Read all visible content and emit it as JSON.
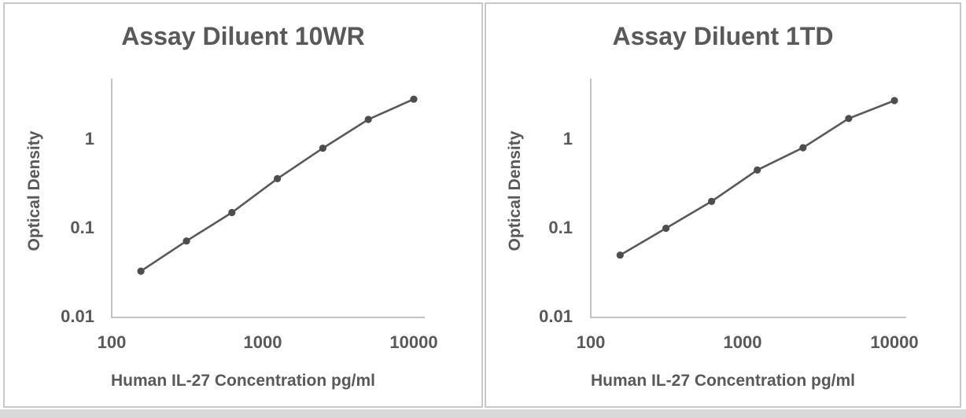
{
  "page": {
    "background_color": "#ffffff",
    "panel_border_color": "#c9c9c9",
    "bottom_strip_color": "#d9d9d9",
    "text_color": "#595959",
    "axis_line_color": "#c3c3c3",
    "series_line_color": "#595959",
    "marker_color": "#4d4d4d"
  },
  "charts": [
    {
      "title": "Assay Diluent 10WR",
      "xlabel": "Human IL-27 Concentration pg/ml",
      "ylabel": "Optical Density",
      "y_ticks": [
        "1",
        "0.1",
        "0.01"
      ],
      "x_ticks": [
        "100",
        "1000",
        "10000"
      ]
    },
    {
      "title": "Assay Diluent 1TD",
      "xlabel": "Human IL-27 Concentration pg/ml",
      "ylabel": "Optical Density",
      "y_ticks": [
        "1",
        "0.1",
        "0.01"
      ],
      "x_ticks": [
        "100",
        "1000",
        "10000"
      ]
    }
  ],
  "chart_data": [
    {
      "type": "line",
      "title": "Assay Diluent 10WR",
      "xlabel": "Human IL-27 Concentration pg/ml",
      "ylabel": "Optical Density",
      "x_scale": "log",
      "y_scale": "log",
      "x": [
        156,
        313,
        625,
        1250,
        2500,
        5000,
        10000
      ],
      "y": [
        0.033,
        0.072,
        0.15,
        0.36,
        0.79,
        1.66,
        2.8
      ],
      "x_tick_values": [
        100,
        1000,
        10000
      ],
      "y_tick_values": [
        1,
        0.1,
        0.01
      ],
      "xlim": [
        100,
        11800
      ],
      "ylim": [
        0.01,
        4.8
      ],
      "grid": false,
      "legend": "none",
      "marker": "circle",
      "line_color": "#595959",
      "marker_color": "#4d4d4d"
    },
    {
      "type": "line",
      "title": "Assay Diluent 1TD",
      "xlabel": "Human IL-27 Concentration pg/ml",
      "ylabel": "Optical Density",
      "x_scale": "log",
      "y_scale": "log",
      "x": [
        156,
        313,
        625,
        1250,
        2500,
        5000,
        10000
      ],
      "y": [
        0.05,
        0.1,
        0.2,
        0.45,
        0.8,
        1.7,
        2.7
      ],
      "x_tick_values": [
        100,
        1000,
        10000
      ],
      "y_tick_values": [
        1,
        0.1,
        0.01
      ],
      "xlim": [
        100,
        11900
      ],
      "ylim": [
        0.01,
        4.8
      ],
      "grid": false,
      "legend": "none",
      "marker": "circle",
      "line_color": "#595959",
      "marker_color": "#4d4d4d"
    }
  ]
}
